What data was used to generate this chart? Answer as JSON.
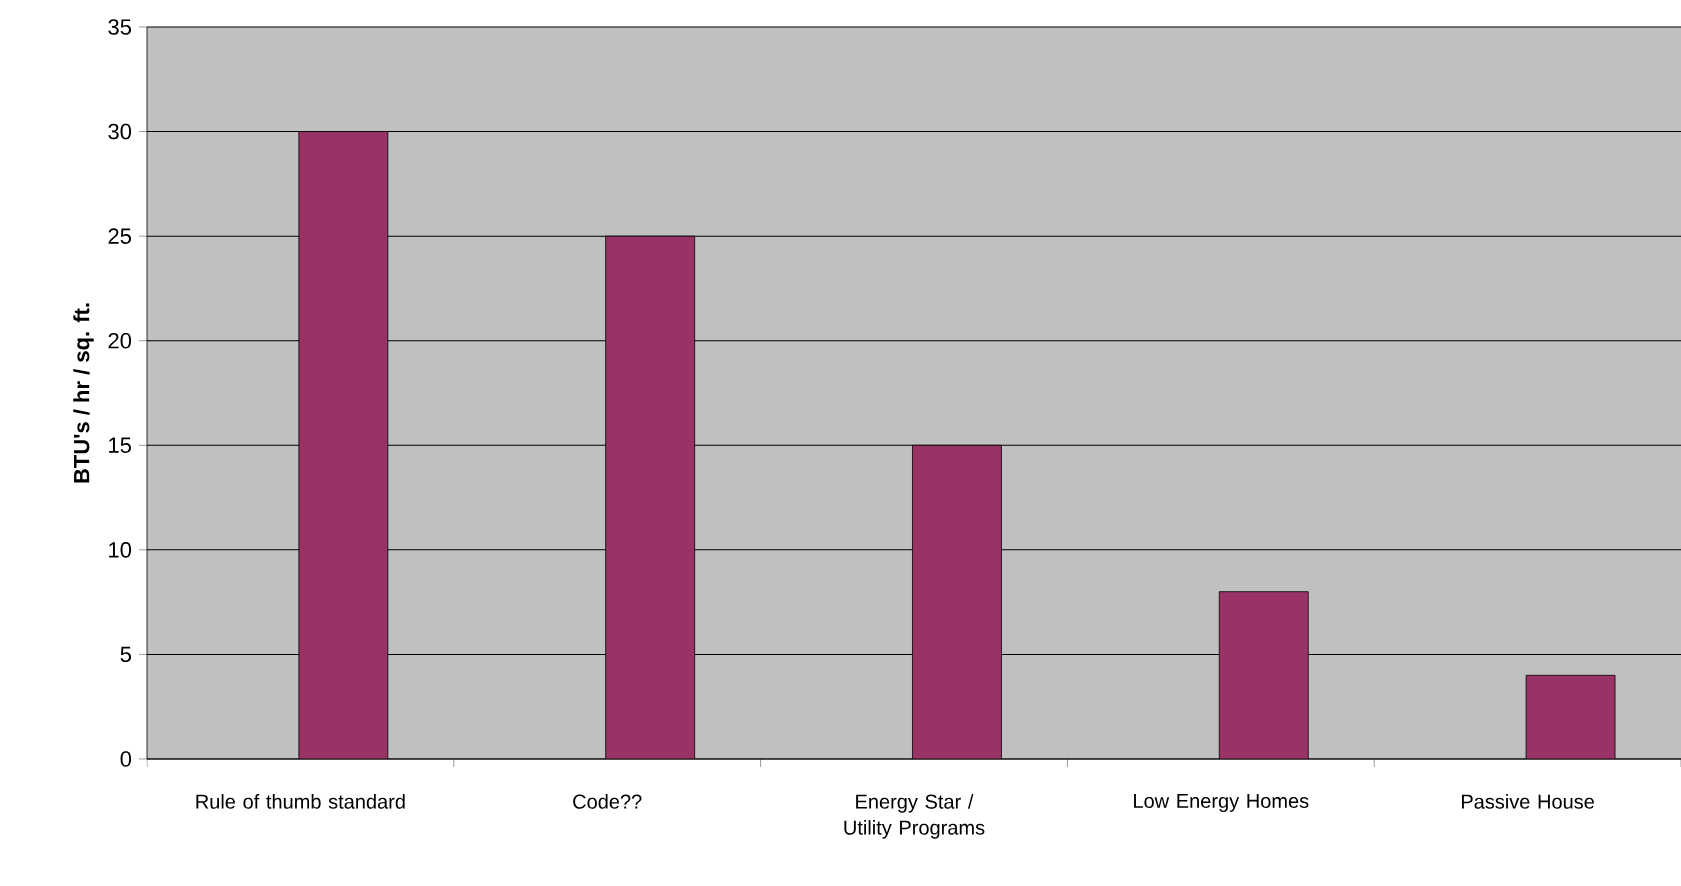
{
  "chart_data": {
    "type": "bar",
    "ylabel": "BTU's / hr / sq. ft.",
    "categories": [
      "Rule of thumb standard",
      "Code??",
      "Energy Star / Utility Programs",
      "Low Energy Homes",
      "Passive House"
    ],
    "values": [
      30,
      25,
      15,
      8,
      4
    ],
    "color": "#993366",
    "ylim": [
      0,
      35
    ],
    "yticks": [
      0,
      5,
      10,
      15,
      20,
      25,
      30,
      35
    ],
    "grid": "y"
  }
}
